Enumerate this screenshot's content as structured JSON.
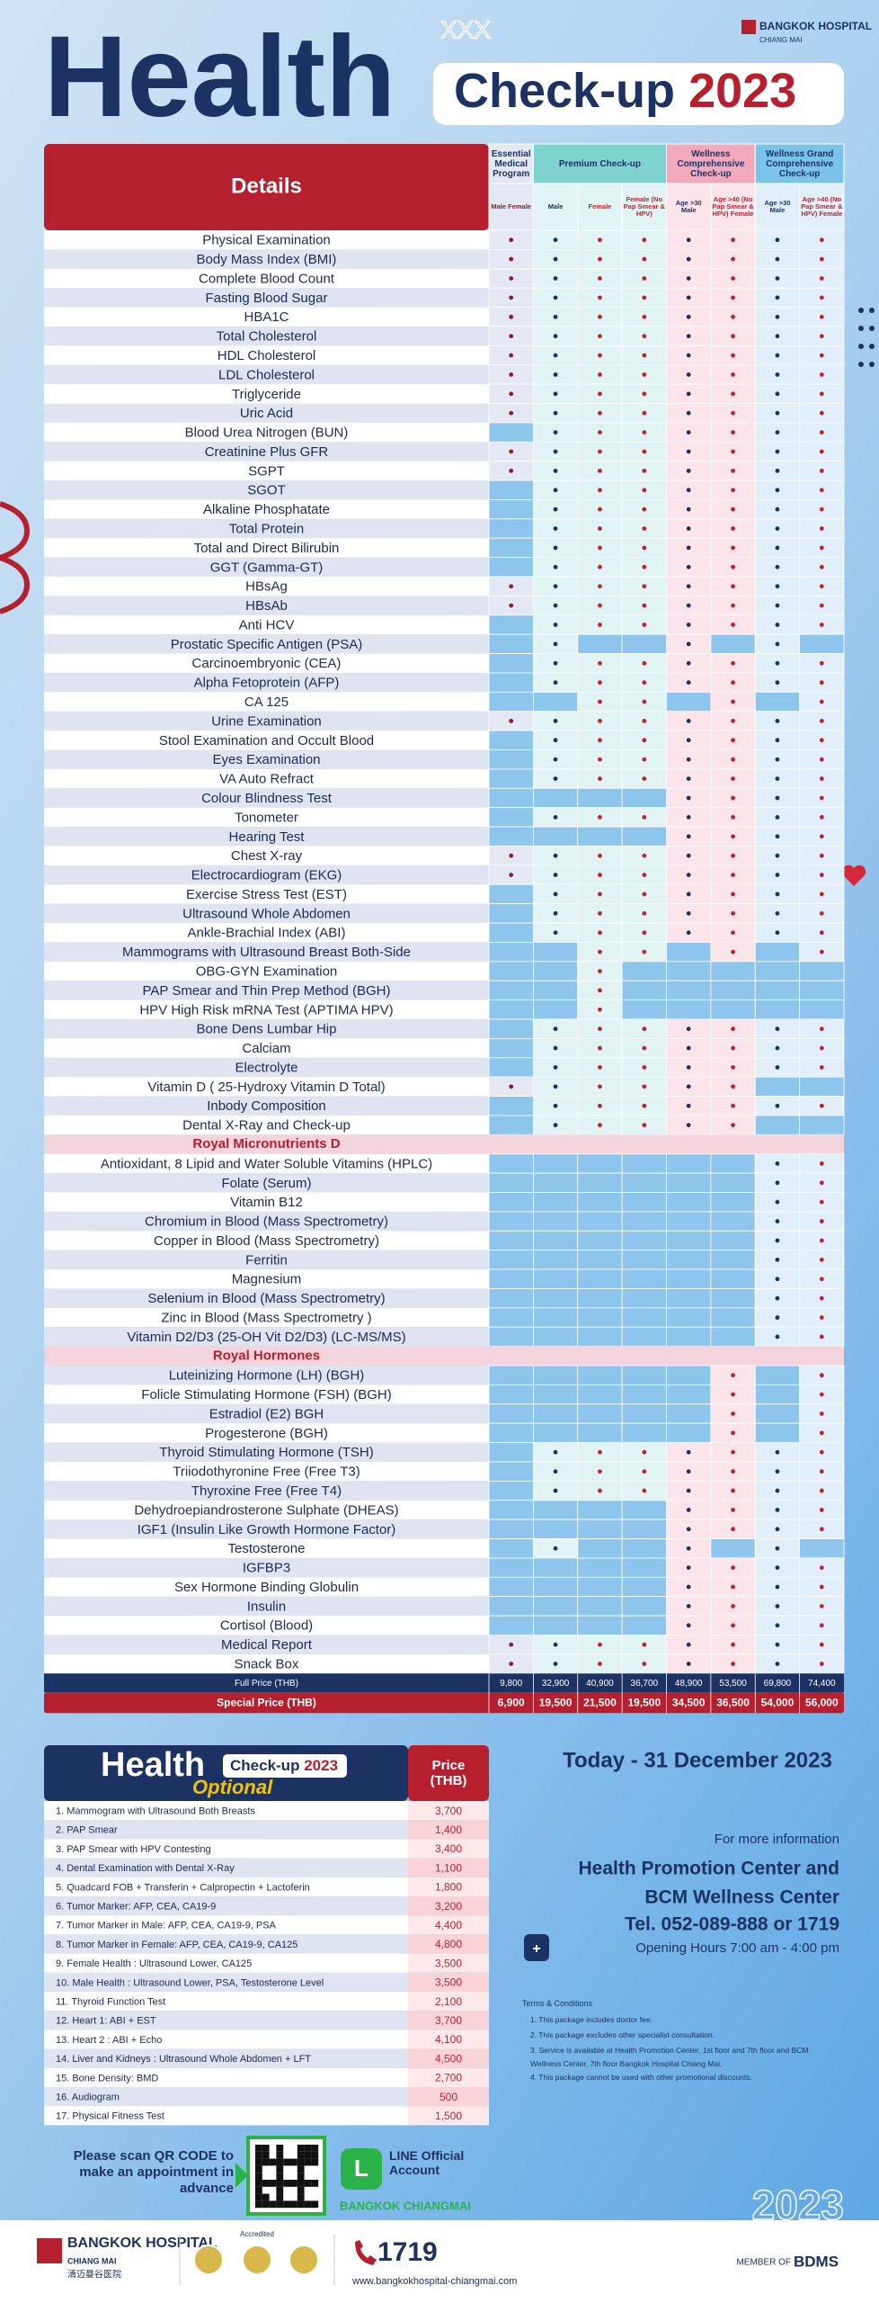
{
  "header": {
    "title": "Health",
    "pill": "Check-up",
    "year": "2023",
    "logo": "BANGKOK HOSPITAL",
    "logo_sub": "CHIANG MAI"
  },
  "table": {
    "details": "Details",
    "groups": [
      "Essential Medical Program",
      "Premium Check-up",
      "Wellness Comprehensive Check-up",
      "Wellness Grand Comprehensive Check-up"
    ],
    "subheaders": [
      "Male Female",
      "Male",
      "Female",
      "Female (No Pap Smear & HPV)",
      "Age >30 Male",
      "Age >40 (No Pap Smear & HPV) Female",
      "Age >30 Male",
      "Age >40 (No Pap Smear & HPV) Female"
    ],
    "rows": [
      {
        "item": "Physical Examination",
        "included": [
          1,
          1,
          1,
          1,
          1,
          1,
          1,
          1
        ]
      },
      {
        "item": "Body Mass Index (BMI)",
        "included": [
          1,
          1,
          1,
          1,
          1,
          1,
          1,
          1
        ]
      },
      {
        "item": "Complete Blood Count",
        "included": [
          1,
          1,
          1,
          1,
          1,
          1,
          1,
          1
        ]
      },
      {
        "item": "Fasting Blood Sugar",
        "included": [
          1,
          1,
          1,
          1,
          1,
          1,
          1,
          1
        ]
      },
      {
        "item": "HBA1C",
        "included": [
          1,
          1,
          1,
          1,
          1,
          1,
          1,
          1
        ]
      },
      {
        "item": "Total Cholesterol",
        "included": [
          1,
          1,
          1,
          1,
          1,
          1,
          1,
          1
        ]
      },
      {
        "item": "HDL Cholesterol",
        "included": [
          1,
          1,
          1,
          1,
          1,
          1,
          1,
          1
        ]
      },
      {
        "item": "LDL Cholesterol",
        "included": [
          1,
          1,
          1,
          1,
          1,
          1,
          1,
          1
        ]
      },
      {
        "item": "Triglyceride",
        "included": [
          1,
          1,
          1,
          1,
          1,
          1,
          1,
          1
        ]
      },
      {
        "item": "Uric Acid",
        "included": [
          1,
          1,
          1,
          1,
          1,
          1,
          1,
          1
        ]
      },
      {
        "item": "Blood Urea Nitrogen (BUN)",
        "included": [
          0,
          1,
          1,
          1,
          1,
          1,
          1,
          1
        ]
      },
      {
        "item": "Creatinine Plus GFR",
        "included": [
          1,
          1,
          1,
          1,
          1,
          1,
          1,
          1
        ]
      },
      {
        "item": "SGPT",
        "included": [
          1,
          1,
          1,
          1,
          1,
          1,
          1,
          1
        ]
      },
      {
        "item": "SGOT",
        "included": [
          0,
          1,
          1,
          1,
          1,
          1,
          1,
          1
        ]
      },
      {
        "item": "Alkaline Phosphatate",
        "included": [
          0,
          1,
          1,
          1,
          1,
          1,
          1,
          1
        ]
      },
      {
        "item": "Total Protein",
        "included": [
          0,
          1,
          1,
          1,
          1,
          1,
          1,
          1
        ]
      },
      {
        "item": "Total and Direct Bilirubin",
        "included": [
          0,
          1,
          1,
          1,
          1,
          1,
          1,
          1
        ]
      },
      {
        "item": "GGT (Gamma-GT)",
        "included": [
          0,
          1,
          1,
          1,
          1,
          1,
          1,
          1
        ]
      },
      {
        "item": "HBsAg",
        "included": [
          1,
          1,
          1,
          1,
          1,
          1,
          1,
          1
        ]
      },
      {
        "item": "HBsAb",
        "included": [
          1,
          1,
          1,
          1,
          1,
          1,
          1,
          1
        ]
      },
      {
        "item": "Anti HCV",
        "included": [
          0,
          1,
          1,
          1,
          1,
          1,
          1,
          1
        ]
      },
      {
        "item": "Prostatic Specific Antigen (PSA)",
        "included": [
          0,
          1,
          0,
          0,
          1,
          0,
          1,
          0
        ]
      },
      {
        "item": "Carcinoembryonic (CEA)",
        "included": [
          0,
          1,
          1,
          1,
          1,
          1,
          1,
          1
        ]
      },
      {
        "item": "Alpha Fetoprotein (AFP)",
        "included": [
          0,
          1,
          1,
          1,
          1,
          1,
          1,
          1
        ]
      },
      {
        "item": "CA 125",
        "included": [
          0,
          0,
          1,
          1,
          0,
          1,
          0,
          1
        ]
      },
      {
        "item": "Urine Examination",
        "included": [
          1,
          1,
          1,
          1,
          1,
          1,
          1,
          1
        ]
      },
      {
        "item": "Stool Examination and Occult Blood",
        "included": [
          0,
          1,
          1,
          1,
          1,
          1,
          1,
          1
        ]
      },
      {
        "item": "Eyes Examination",
        "included": [
          0,
          1,
          1,
          1,
          1,
          1,
          1,
          1
        ]
      },
      {
        "item": "VA Auto Refract",
        "included": [
          0,
          1,
          1,
          1,
          1,
          1,
          1,
          1
        ]
      },
      {
        "item": "Colour Blindness Test",
        "included": [
          0,
          0,
          0,
          0,
          1,
          1,
          1,
          1
        ]
      },
      {
        "item": "Tonometer",
        "included": [
          0,
          1,
          1,
          1,
          1,
          1,
          1,
          1
        ]
      },
      {
        "item": "Hearing Test",
        "included": [
          0,
          0,
          0,
          0,
          1,
          1,
          1,
          1
        ]
      },
      {
        "item": "Chest X-ray",
        "included": [
          1,
          1,
          1,
          1,
          1,
          1,
          1,
          1
        ]
      },
      {
        "item": "Electrocardiogram (EKG)",
        "included": [
          1,
          1,
          1,
          1,
          1,
          1,
          1,
          1
        ]
      },
      {
        "item": "Exercise Stress Test (EST)",
        "included": [
          0,
          1,
          1,
          1,
          1,
          1,
          1,
          1
        ]
      },
      {
        "item": "Ultrasound Whole Abdomen",
        "included": [
          0,
          1,
          1,
          1,
          1,
          1,
          1,
          1
        ]
      },
      {
        "item": "Ankle-Brachial Index (ABI)",
        "included": [
          0,
          1,
          1,
          1,
          1,
          1,
          1,
          1
        ]
      },
      {
        "item": "Mammograms with Ultrasound Breast Both-Side",
        "included": [
          0,
          0,
          1,
          1,
          0,
          1,
          0,
          1
        ]
      },
      {
        "item": "OBG-GYN Examination",
        "included": [
          0,
          0,
          1,
          0,
          0,
          0,
          0,
          0
        ]
      },
      {
        "item": "PAP Smear and Thin Prep Method (BGH)",
        "included": [
          0,
          0,
          1,
          0,
          0,
          0,
          0,
          0
        ]
      },
      {
        "item": "HPV High Risk mRNA Test (APTIMA HPV)",
        "included": [
          0,
          0,
          1,
          0,
          0,
          0,
          0,
          0
        ]
      },
      {
        "item": "Bone Dens Lumbar Hip",
        "included": [
          0,
          1,
          1,
          1,
          1,
          1,
          1,
          1
        ]
      },
      {
        "item": "Calciam",
        "included": [
          0,
          1,
          1,
          1,
          1,
          1,
          1,
          1
        ]
      },
      {
        "item": "Electrolyte",
        "included": [
          0,
          1,
          1,
          1,
          1,
          1,
          1,
          1
        ]
      },
      {
        "item": "Vitamin D ( 25-Hydroxy Vitamin D Total)",
        "included": [
          1,
          1,
          1,
          1,
          1,
          1,
          0,
          0
        ]
      },
      {
        "item": "Inbody Composition",
        "included": [
          0,
          1,
          1,
          1,
          1,
          1,
          1,
          1
        ]
      },
      {
        "item": "Dental X-Ray and Check-up",
        "included": [
          0,
          1,
          1,
          1,
          1,
          1,
          0,
          0
        ]
      },
      {
        "section": "Royal Micronutrients D"
      },
      {
        "item": "Antioxidant, 8 Lipid and Water Soluble Vitamins (HPLC)",
        "included": [
          0,
          0,
          0,
          0,
          0,
          0,
          1,
          1
        ]
      },
      {
        "item": "Folate (Serum)",
        "included": [
          0,
          0,
          0,
          0,
          0,
          0,
          1,
          1
        ]
      },
      {
        "item": "Vitamin B12",
        "included": [
          0,
          0,
          0,
          0,
          0,
          0,
          1,
          1
        ]
      },
      {
        "item": "Chromium in Blood (Mass Spectrometry)",
        "included": [
          0,
          0,
          0,
          0,
          0,
          0,
          1,
          1
        ]
      },
      {
        "item": "Copper in Blood (Mass Spectrometry)",
        "included": [
          0,
          0,
          0,
          0,
          0,
          0,
          1,
          1
        ]
      },
      {
        "item": "Ferritin",
        "included": [
          0,
          0,
          0,
          0,
          0,
          0,
          1,
          1
        ]
      },
      {
        "item": "Magnesium",
        "included": [
          0,
          0,
          0,
          0,
          0,
          0,
          1,
          1
        ]
      },
      {
        "item": "Selenium in Blood (Mass Spectrometry)",
        "included": [
          0,
          0,
          0,
          0,
          0,
          0,
          1,
          1
        ]
      },
      {
        "item": "Zinc in Blood (Mass Spectrometry )",
        "included": [
          0,
          0,
          0,
          0,
          0,
          0,
          1,
          1
        ]
      },
      {
        "item": "Vitamin D2/D3 (25-OH Vit D2/D3) (LC-MS/MS)",
        "included": [
          0,
          0,
          0,
          0,
          0,
          0,
          1,
          1
        ]
      },
      {
        "section": "Royal Hormones"
      },
      {
        "item": "Luteinizing Hormone (LH) (BGH)",
        "included": [
          0,
          0,
          0,
          0,
          0,
          1,
          0,
          1
        ]
      },
      {
        "item": "Folicle Stimulating Hormone (FSH) (BGH)",
        "included": [
          0,
          0,
          0,
          0,
          0,
          1,
          0,
          1
        ]
      },
      {
        "item": "Estradiol (E2) BGH",
        "included": [
          0,
          0,
          0,
          0,
          0,
          1,
          0,
          1
        ]
      },
      {
        "item": "Progesterone (BGH)",
        "included": [
          0,
          0,
          0,
          0,
          0,
          1,
          0,
          1
        ]
      },
      {
        "item": "Thyroid Stimulating Hormone (TSH)",
        "included": [
          0,
          1,
          1,
          1,
          1,
          1,
          1,
          1
        ]
      },
      {
        "item": "Triiodothyronine Free (Free T3)",
        "included": [
          0,
          1,
          1,
          1,
          1,
          1,
          1,
          1
        ]
      },
      {
        "item": "Thyroxine Free (Free T4)",
        "included": [
          0,
          1,
          1,
          1,
          1,
          1,
          1,
          1
        ]
      },
      {
        "item": "Dehydroepiandrosterone Sulphate (DHEAS)",
        "included": [
          0,
          0,
          0,
          0,
          1,
          1,
          1,
          1
        ]
      },
      {
        "item": "IGF1 (Insulin Like Growth Hormone Factor)",
        "included": [
          0,
          0,
          0,
          0,
          1,
          1,
          1,
          1
        ]
      },
      {
        "item": "Testosterone",
        "included": [
          0,
          1,
          0,
          0,
          1,
          0,
          1,
          0
        ]
      },
      {
        "item": "IGFBP3",
        "included": [
          0,
          0,
          0,
          0,
          1,
          1,
          1,
          1
        ]
      },
      {
        "item": "Sex Hormone Binding Globulin",
        "included": [
          0,
          0,
          0,
          0,
          1,
          1,
          1,
          1
        ]
      },
      {
        "item": "Insulin",
        "included": [
          0,
          0,
          0,
          0,
          1,
          1,
          1,
          1
        ]
      },
      {
        "item": "Cortisol (Blood)",
        "included": [
          0,
          0,
          0,
          0,
          1,
          1,
          1,
          1
        ]
      },
      {
        "item": "Medical Report",
        "included": [
          1,
          1,
          1,
          1,
          1,
          1,
          1,
          1
        ]
      },
      {
        "item": "Snack Box",
        "included": [
          1,
          1,
          1,
          1,
          1,
          1,
          1,
          1
        ]
      }
    ],
    "full_label": "Full Price (THB)",
    "full_prices": [
      "9,800",
      "32,900",
      "40,900",
      "36,700",
      "48,900",
      "53,500",
      "69,800",
      "74,400"
    ],
    "special_label": "Special Price (THB)",
    "special_prices": [
      "6,900",
      "19,500",
      "21,500",
      "19,500",
      "34,500",
      "36,500",
      "54,000",
      "56,000"
    ]
  },
  "optional": {
    "title": "Health",
    "pill": "Check-up",
    "year": "2023",
    "subtitle": "Optional",
    "price_header": "Price (THB)",
    "items": [
      [
        "1. Mammogram with Ultrasound Both Breasts",
        "3,700"
      ],
      [
        "2. PAP Smear",
        "1,400"
      ],
      [
        "3. PAP Smear with HPV Contesting",
        "3,400"
      ],
      [
        "4. Dental Examination with Dental X-Ray",
        "1,100"
      ],
      [
        "5. Quadcard FOB + Transferin + Calpropectin + Lactoferin",
        "1,800"
      ],
      [
        "6. Tumor Marker: AFP, CEA, CA19-9",
        "3,200"
      ],
      [
        "7. Tumor Marker in Male: AFP, CEA, CA19-9, PSA",
        "4,400"
      ],
      [
        "8. Tumor Marker in Female: AFP, CEA, CA19-9, CA125",
        "4,800"
      ],
      [
        "9. Female Health : Ultrasound Lower, CA125",
        "3,500"
      ],
      [
        "10. Male Health : Ultrasound Lower, PSA, Testosterone Level",
        "3,500"
      ],
      [
        "11. Thyroid Function Test",
        "2,100"
      ],
      [
        "12. Heart 1: ABI + EST",
        "3,700"
      ],
      [
        "13. Heart 2 : ABI + Echo",
        "4,100"
      ],
      [
        "14. Liver and Kidneys : Ultrasound Whole Abdomen + LFT",
        "4,500"
      ],
      [
        "15. Bone Density: BMD",
        "2,700"
      ],
      [
        "16. Audiogram",
        "500"
      ],
      [
        "17. Physical Fitness Test",
        "1,500"
      ]
    ]
  },
  "info": {
    "period": "Today - 31 December 2023",
    "more": "For more information",
    "center1": "Health Promotion Center and",
    "center2": "BCM Wellness Center",
    "tel": "Tel. 052-089-888 or 1719",
    "hours": "Opening Hours 7:00 am - 4:00 pm",
    "terms_title": "Terms & Conditions",
    "terms": [
      "1. This package includes doctor fee.",
      "2. This package excludes other specialist consultation.",
      "3. Service is available at Health Promotion Center, 1st floor and 7th floor and BCM Wellness Center, 7th floor Bangkok Hospital Chiang Mai.",
      "4. This package cannot be used with other promotional discounts."
    ]
  },
  "appointment": {
    "scan": "Please scan QR CODE to make an appointment in advance",
    "line": "LINE Official Account",
    "line_name": "BANGKOK CHIANGMAI",
    "year": "2023"
  },
  "footer": {
    "logo": "BANGKOK HOSPITAL",
    "logo_sub": "CHIANG MAI",
    "chinese": "清迈曼谷医院",
    "accredited": "Accredited",
    "phone": "1719",
    "url": "www.bangkokhospital-chiangmai.com",
    "member": "MEMBER OF",
    "bdms": "BDMS"
  }
}
